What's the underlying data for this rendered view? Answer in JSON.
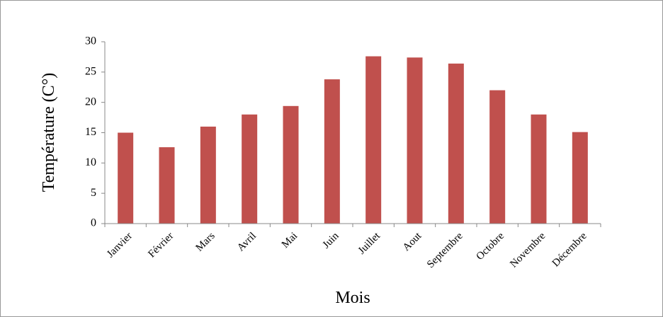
{
  "chart_data": {
    "type": "bar",
    "x_label": "Mois",
    "y_label": "Température (C°)",
    "categories": [
      "Janvier",
      "Février",
      "Mars",
      "Avril",
      "Mai",
      "Juin",
      "Juillet",
      "Aout",
      "Septembre",
      "Octobre",
      "Novembre",
      "Décembre"
    ],
    "values": [
      15,
      12.6,
      16,
      18,
      19.4,
      23.8,
      27.6,
      27.4,
      26.4,
      22,
      18,
      15.1
    ],
    "color": "#c0504d",
    "ylim": [
      0,
      30
    ],
    "yticks": [
      0,
      5,
      10,
      15,
      20,
      25,
      30
    ],
    "grid": false
  }
}
